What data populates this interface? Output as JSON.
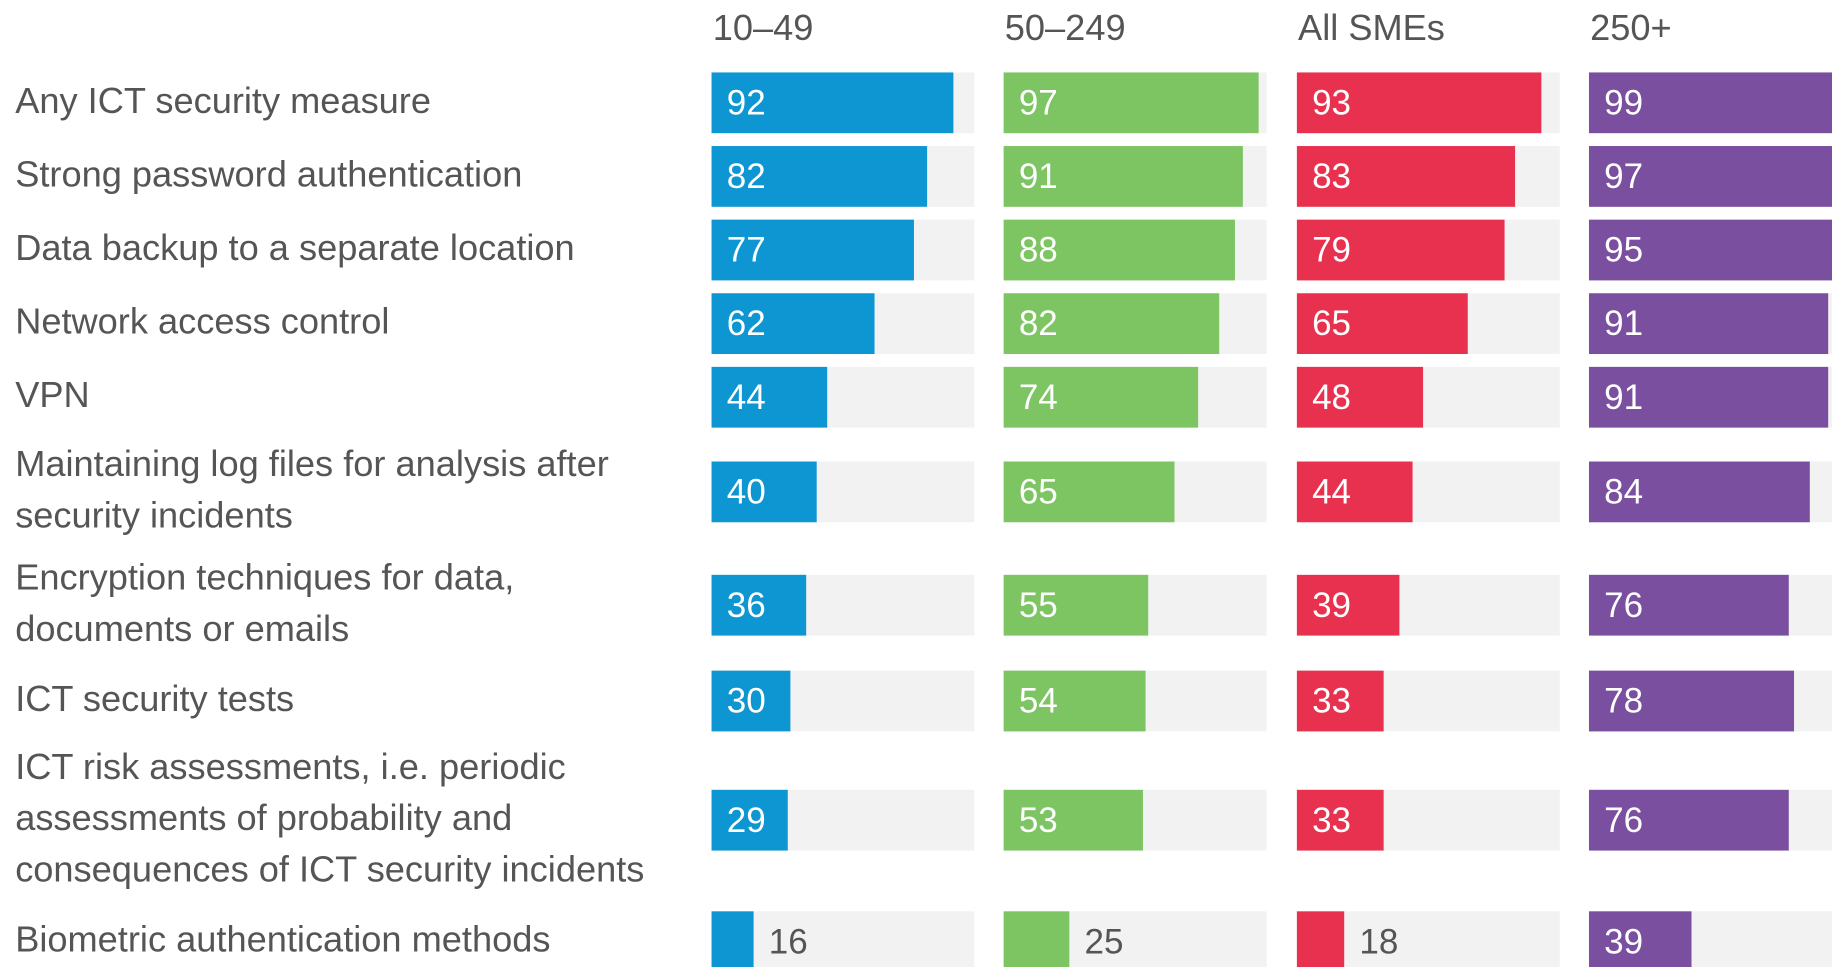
{
  "chart_data": {
    "type": "bar",
    "categories": [
      "Any ICT security measure",
      "Strong password authentication",
      "Data backup to a separate location",
      "Network access control",
      "VPN",
      "Maintaining log files for analysis after\nsecurity incidents",
      "Encryption techniques for data,\ndocuments or emails",
      "ICT security tests",
      "ICT risk assessments, i.e. periodic\nassessments of probability and\nconsequences of ICT security incidents",
      "Biometric authentication methods"
    ],
    "series": [
      {
        "name": "10–49",
        "color": "#0e96d2",
        "values": [
          92,
          82,
          77,
          62,
          44,
          40,
          36,
          30,
          29,
          16
        ]
      },
      {
        "name": "50–249",
        "color": "#7dc462",
        "values": [
          97,
          91,
          88,
          82,
          74,
          65,
          55,
          54,
          53,
          25
        ]
      },
      {
        "name": "All SMEs",
        "color": "#e8304f",
        "values": [
          93,
          83,
          79,
          65,
          48,
          44,
          39,
          33,
          33,
          18
        ]
      },
      {
        "name": "250+",
        "color": "#7a4f9f",
        "values": [
          99,
          97,
          95,
          91,
          91,
          84,
          76,
          78,
          76,
          39
        ]
      }
    ],
    "xlim": [
      0,
      100
    ]
  }
}
